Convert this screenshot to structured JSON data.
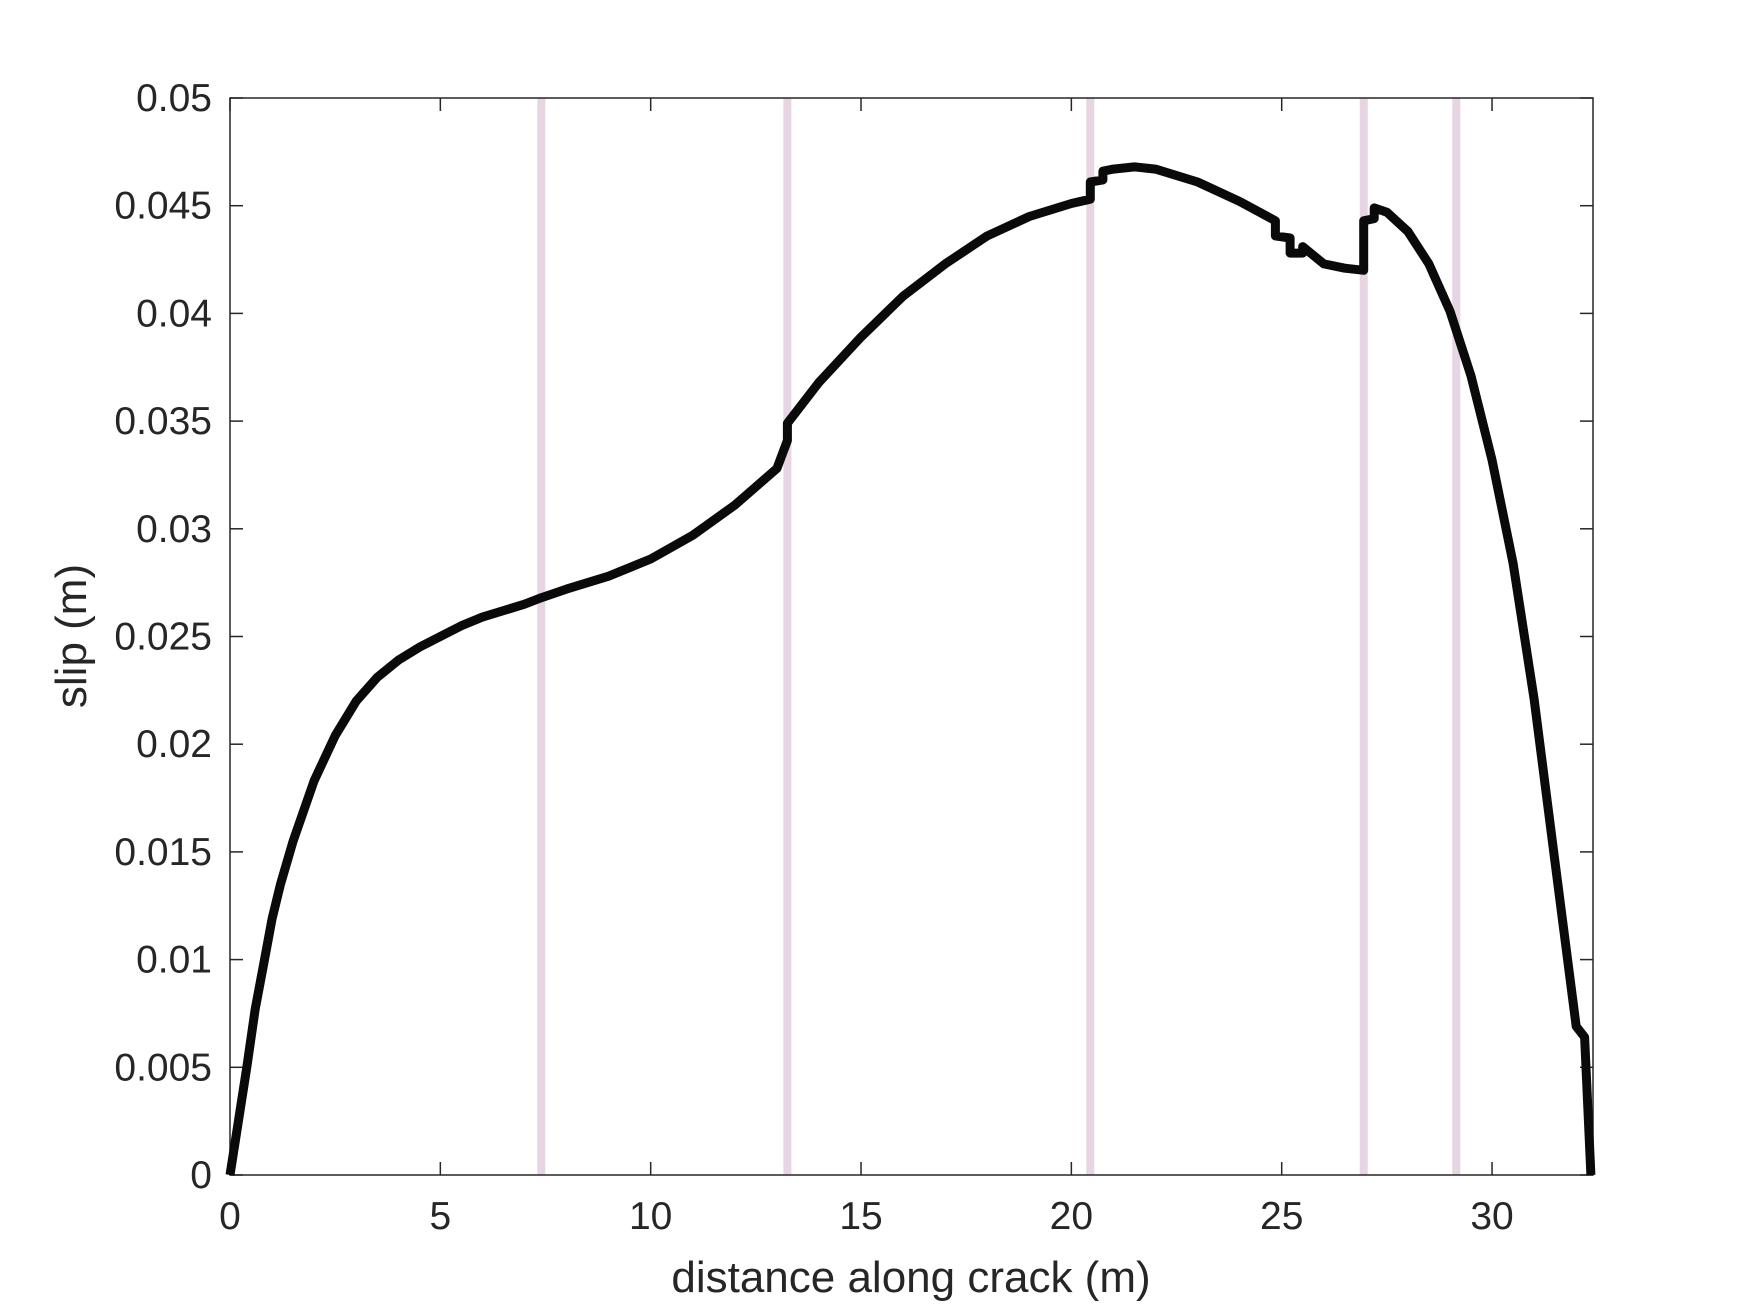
{
  "chart_data": {
    "type": "line",
    "title": "",
    "xlabel": "distance along crack (m)",
    "ylabel": "slip (m)",
    "xlim": [
      0,
      32.4
    ],
    "ylim": [
      0,
      0.05
    ],
    "xticks": [
      0,
      5,
      10,
      15,
      20,
      25,
      30
    ],
    "xtick_labels": [
      "0",
      "5",
      "10",
      "15",
      "20",
      "25",
      "30"
    ],
    "yticks": [
      0,
      0.005,
      0.01,
      0.015,
      0.02,
      0.025,
      0.03,
      0.035,
      0.04,
      0.045,
      0.05
    ],
    "ytick_labels": [
      "0",
      "0.005",
      "0.01",
      "0.015",
      "0.02",
      "0.025",
      "0.03",
      "0.035",
      "0.04",
      "0.045",
      "0.05"
    ],
    "grid": false,
    "legend": "none",
    "vertical_markers": {
      "x": [
        7.4,
        13.25,
        20.45,
        26.95,
        29.15
      ],
      "color": "#e8d5e3"
    },
    "series": [
      {
        "color": "#0a0a0a",
        "x": [
          0,
          0.2,
          0.4,
          0.6,
          0.8,
          1.0,
          1.2,
          1.5,
          2.0,
          2.5,
          3.0,
          3.5,
          4.0,
          4.5,
          5.0,
          5.5,
          6.0,
          7.0,
          7.4,
          8.0,
          9.0,
          10.0,
          11.0,
          12.0,
          13.0,
          13.25,
          13.25,
          14.0,
          15.0,
          16.0,
          17.0,
          18.0,
          19.0,
          20.0,
          20.45,
          20.45,
          20.75,
          20.75,
          21.0,
          21.5,
          22.0,
          23.0,
          24.0,
          24.85,
          24.85,
          25.2,
          25.2,
          25.5,
          25.5,
          26.0,
          26.5,
          26.95,
          26.95,
          27.2,
          27.2,
          27.5,
          28.0,
          28.5,
          29.0,
          29.5,
          30.0,
          30.5,
          31.0,
          31.5,
          32.0,
          32.2,
          32.35
        ],
        "y": [
          0,
          0.0025,
          0.005,
          0.0077,
          0.0098,
          0.0119,
          0.0135,
          0.0155,
          0.0183,
          0.0204,
          0.022,
          0.0231,
          0.0239,
          0.0245,
          0.025,
          0.0255,
          0.0259,
          0.0265,
          0.0268,
          0.0272,
          0.0278,
          0.0286,
          0.0297,
          0.0311,
          0.0328,
          0.0341,
          0.0349,
          0.0368,
          0.0389,
          0.0408,
          0.0423,
          0.0436,
          0.0445,
          0.0451,
          0.0453,
          0.0461,
          0.0462,
          0.0466,
          0.0467,
          0.0468,
          0.0467,
          0.0461,
          0.0452,
          0.0443,
          0.0436,
          0.0435,
          0.0428,
          0.0428,
          0.0431,
          0.0423,
          0.0421,
          0.042,
          0.0443,
          0.0444,
          0.0449,
          0.0447,
          0.0438,
          0.0423,
          0.0401,
          0.0371,
          0.0332,
          0.0284,
          0.0221,
          0.0145,
          0.0069,
          0.0064,
          0
        ]
      }
    ]
  }
}
